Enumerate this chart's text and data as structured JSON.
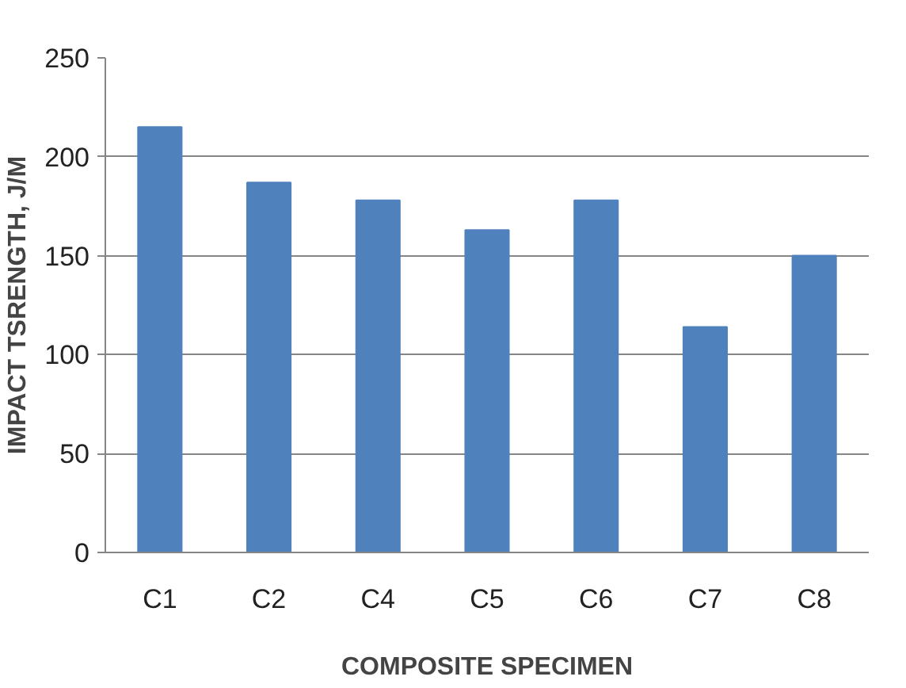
{
  "chart_data": {
    "type": "bar",
    "xlabel": "COMPOSITE SPECIMEN",
    "ylabel": "IMPACT TSRENGTH, J/M",
    "categories": [
      "C1",
      "C2",
      "C4",
      "C5",
      "C6",
      "C7",
      "C8"
    ],
    "values": [
      215,
      187,
      178,
      163,
      178,
      114,
      150
    ],
    "color": "#4f81bd",
    "ylim": [
      0,
      250
    ],
    "yticks": [
      0,
      50,
      100,
      150,
      200,
      250
    ],
    "grid": "y"
  }
}
